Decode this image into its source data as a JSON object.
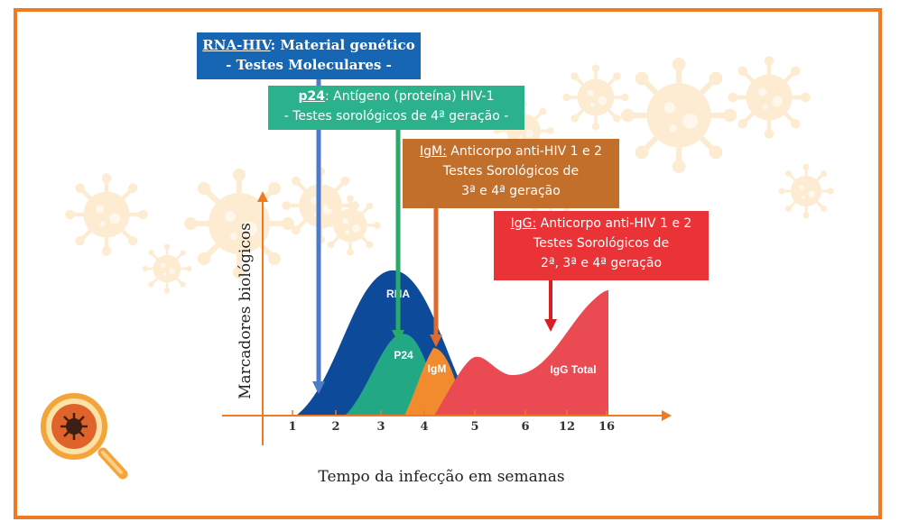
{
  "chart_data": {
    "type": "area",
    "title": "",
    "xlabel": "Tempo da infecção em semanas",
    "ylabel": "Marcadores biológicos",
    "x_ticks": [
      "1",
      "2",
      "3",
      "4",
      "5",
      "6",
      "12",
      "16"
    ],
    "series": [
      {
        "name": "RNA",
        "color": "#0d4a9a"
      },
      {
        "name": "P24",
        "color": "#22a884"
      },
      {
        "name": "IgM",
        "color": "#f28a2e"
      },
      {
        "name": "IgG Total",
        "color": "#ea4a52"
      }
    ]
  },
  "annotations": {
    "rna": {
      "title": "RNA-HIV",
      "rest": ": Material genético",
      "line2": "- Testes Moleculares -",
      "color": "#1766b3"
    },
    "p24": {
      "title": "p24",
      "rest": ":  Antígeno (proteína) HIV-1",
      "line2": "- Testes sorológicos de 4ª geração -",
      "color": "#2bb28c"
    },
    "igm": {
      "title": "IgM:",
      "rest": " Anticorpo anti-HIV 1 e 2",
      "line2": "Testes Sorológicos de",
      "line3": "3ª e 4ª geração",
      "color": "#c36f2c"
    },
    "igg": {
      "title": "IgG:",
      "rest": " Anticorpo anti-HIV 1  e 2",
      "line2": "Testes Sorológicos de",
      "line3": "2ª, 3ª  e 4ª geração",
      "color": "#e93337"
    }
  },
  "colors": {
    "frame": "#f07a22",
    "axis": "#f07a22",
    "virus_bg": "#fce6c3"
  },
  "icons": {
    "corner": "magnifier-virus-icon",
    "background": "virus-icon"
  }
}
